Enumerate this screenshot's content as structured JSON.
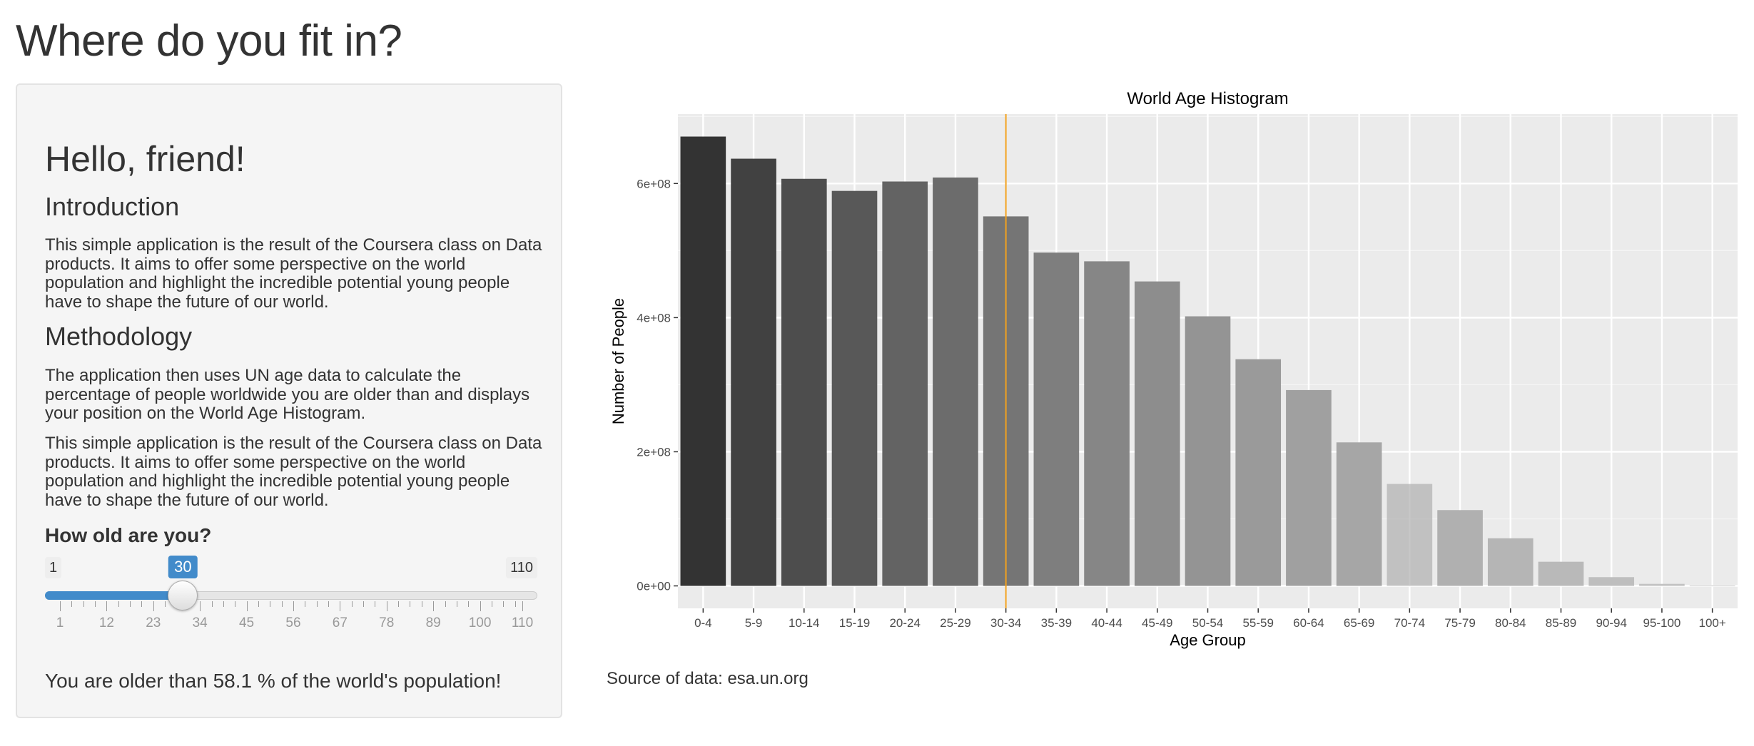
{
  "page": {
    "title": "Where do you fit in?"
  },
  "sidebar": {
    "greeting": "Hello, friend!",
    "intro_heading": "Introduction",
    "intro_text": "This simple application is the result of the Coursera class on Data products. It aims to offer some perspective on the world population and highlight the incredible potential young people have to shape the future of our world.",
    "method_heading": "Methodology",
    "method_text": "The application then uses UN age data to calculate the percentage of people worldwide you are older than and displays your position on the World Age Histogram.",
    "method_text_2": "This simple application is the result of the Coursera class on Data products. It aims to offer some perspective on the world population and highlight the incredible potential young people have to shape the future of our world.",
    "age_label": "How old are you?",
    "slider": {
      "min": 1,
      "max": 110,
      "value": 30,
      "min_label": "1",
      "max_label": "110",
      "value_label": "30",
      "tick_labels": [
        "1",
        "12",
        "23",
        "34",
        "45",
        "56",
        "67",
        "78",
        "89",
        "100",
        "110"
      ]
    },
    "result_text": "You are older than 58.1 % of the world's population!"
  },
  "source_text": "Source of data: esa.un.org",
  "colors": {
    "accent": "#428bca",
    "marker_line": "#f0a020",
    "panel_bg": "#ebebeb"
  },
  "chart_data": {
    "type": "bar",
    "title": "World Age Histogram",
    "xlabel": "Age Group",
    "ylabel": "Number of People",
    "categories": [
      "0-4",
      "5-9",
      "10-14",
      "15-19",
      "20-24",
      "25-29",
      "30-34",
      "35-39",
      "40-44",
      "45-49",
      "50-54",
      "55-59",
      "60-64",
      "65-69",
      "70-74",
      "75-79",
      "80-84",
      "85-89",
      "90-94",
      "95-100",
      "100+"
    ],
    "values": [
      670000000,
      637000000,
      607000000,
      589000000,
      603000000,
      609000000,
      551000000,
      497000000,
      484000000,
      454000000,
      402000000,
      338000000,
      292000000,
      214000000,
      152000000,
      113000000,
      71000000,
      36000000,
      13000000,
      3000000,
      500000
    ],
    "bar_colors": [
      "#333333",
      "#414141",
      "#4d4d4d",
      "#585858",
      "#636363",
      "#6c6c6c",
      "#757575",
      "#7e7e7e",
      "#868686",
      "#8d8d8d",
      "#949494",
      "#9a9a9a",
      "#a0a0a0",
      "#a6a6a6",
      "#abababab",
      "#b0b0b0",
      "#b5b5b5",
      "#b9b9b9",
      "#bebebe",
      "#c2c2c2",
      "#c6c6c6"
    ],
    "yticks": [
      0,
      200000000,
      400000000,
      600000000
    ],
    "ytick_labels": [
      "0e+00",
      "2e+08",
      "4e+08",
      "6e+08"
    ],
    "ylim": [
      -33500000,
      703500000
    ],
    "marker_category": "30-34",
    "grid": true
  }
}
